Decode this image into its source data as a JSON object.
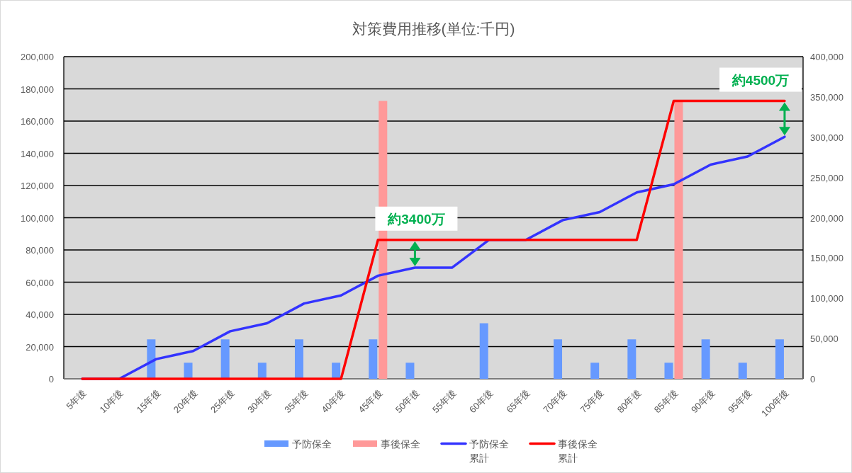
{
  "chart_data": {
    "type": "bar",
    "title": "対策費用推移(単位:千円)",
    "categories": [
      "5年後",
      "10年後",
      "15年後",
      "20年後",
      "25年後",
      "30年後",
      "35年後",
      "40年後",
      "45年後",
      "50年後",
      "55年後",
      "60年後",
      "65年後",
      "70年後",
      "75年後",
      "80年後",
      "85年後",
      "90年後",
      "95年後",
      "100年後"
    ],
    "series": [
      {
        "name": "予防保全",
        "color": "#6699ff",
        "values": [
          0,
          0,
          24500,
          10000,
          24500,
          10000,
          24500,
          10000,
          24500,
          10000,
          0,
          34500,
          0,
          24500,
          10000,
          24500,
          10000,
          24500,
          10000,
          24500
        ]
      },
      {
        "name": "事後保全",
        "color": "#ff9999",
        "values": [
          0,
          0,
          0,
          0,
          0,
          0,
          0,
          0,
          172500,
          0,
          0,
          0,
          0,
          0,
          0,
          0,
          172500,
          0,
          0,
          0
        ]
      },
      {
        "name": "予防保全累計",
        "type": "line",
        "axis": "y2",
        "color": "#3333ff",
        "values": [
          0,
          0,
          24500,
          34500,
          59000,
          69000,
          93500,
          103500,
          128000,
          138000,
          138000,
          172500,
          172500,
          197000,
          207000,
          231500,
          241500,
          266000,
          276000,
          300500
        ]
      },
      {
        "name": "事後保全累計",
        "type": "line",
        "axis": "y2",
        "color": "#ff0000",
        "values": [
          0,
          0,
          0,
          0,
          0,
          0,
          0,
          0,
          172500,
          172500,
          172500,
          172500,
          172500,
          172500,
          172500,
          172500,
          345000,
          345000,
          345000,
          345000
        ]
      }
    ],
    "ylim": [
      0,
      200000
    ],
    "yticks": [
      0,
      {
        "value": 20000,
        "label": "20,000"
      },
      {
        "value": 40000,
        "label": "40,000"
      },
      {
        "value": 60000,
        "label": "60,000"
      },
      {
        "value": 80000,
        "label": "80,000"
      },
      {
        "value": 100000,
        "label": "100,000"
      },
      {
        "value": 120000,
        "label": "120,000"
      },
      {
        "value": 140000,
        "label": "140,000"
      },
      {
        "value": 160000,
        "label": "160,000"
      },
      {
        "value": 180000,
        "label": "180,000"
      },
      {
        "value": 200000,
        "label": "200,000"
      }
    ],
    "y2lim": [
      0,
      400000
    ],
    "y2ticks": [
      0,
      {
        "value": 50000,
        "label": "50,000"
      },
      {
        "value": 100000,
        "label": "100,000"
      },
      {
        "value": 150000,
        "label": "150,000"
      },
      {
        "value": 200000,
        "label": "200,000"
      },
      {
        "value": 250000,
        "label": "250,000"
      },
      {
        "value": 300000,
        "label": "300,000"
      },
      {
        "value": 350000,
        "label": "350,000"
      },
      {
        "value": 400000,
        "label": "400,000"
      }
    ],
    "annotations": [
      "約3400万",
      "約4500万"
    ],
    "grid": "y",
    "legend": "bottom"
  }
}
